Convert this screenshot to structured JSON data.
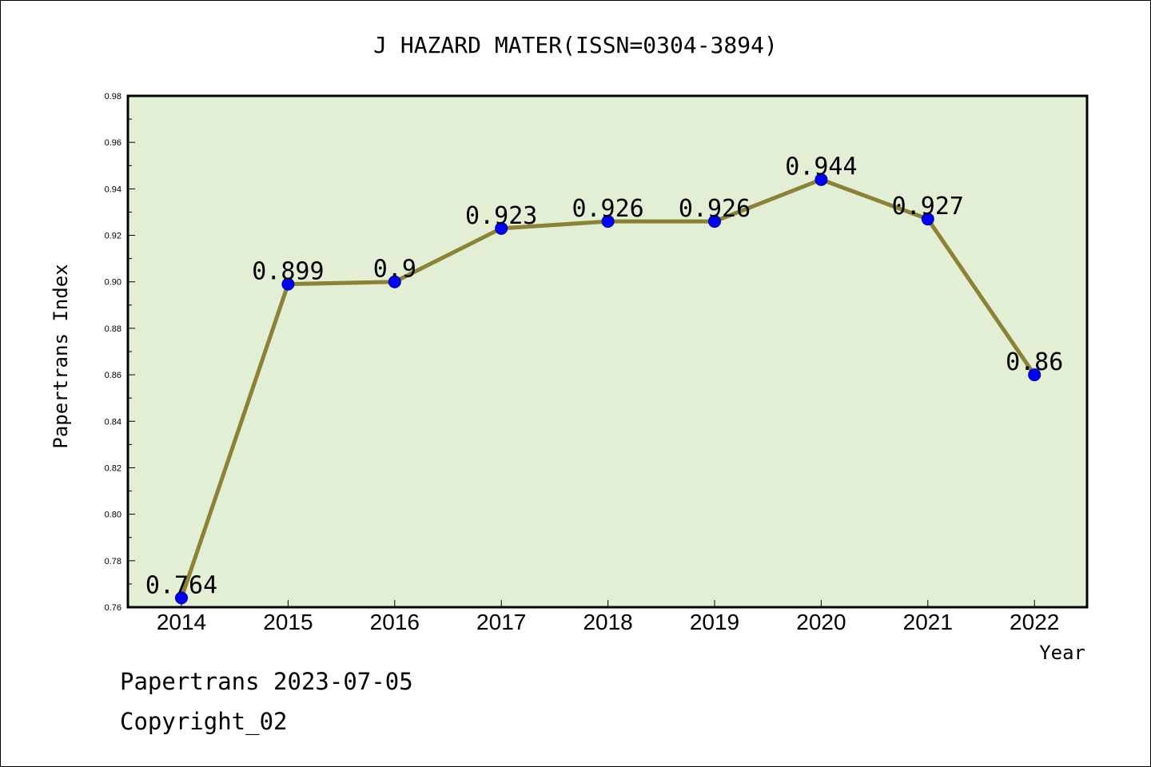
{
  "chart_data": {
    "type": "line",
    "title": "J HAZARD MATER(ISSN=0304-3894)",
    "xlabel": "Year",
    "ylabel": "Papertrans Index",
    "categories": [
      "2014",
      "2015",
      "2016",
      "2017",
      "2018",
      "2019",
      "2020",
      "2021",
      "2022"
    ],
    "series": [
      {
        "values": [
          0.764,
          0.899,
          0.9,
          0.923,
          0.926,
          0.926,
          0.944,
          0.927,
          0.86
        ],
        "labels": [
          "0.764",
          "0.899",
          "0.9",
          "0.923",
          "0.926",
          "0.926",
          "0.944",
          "0.927",
          "0.86"
        ]
      }
    ],
    "ylim": [
      0.76,
      0.98
    ],
    "yticks": [
      "0.76",
      "0.78",
      "0.80",
      "0.82",
      "0.84",
      "0.86",
      "0.88",
      "0.90",
      "0.92",
      "0.94",
      "0.96",
      "0.98"
    ],
    "grid": false,
    "legend": "none",
    "colors": {
      "plot_background": "#e2efd5",
      "line": "#8b8236",
      "marker": "#0000ff",
      "axis": "#000000"
    }
  },
  "footer": {
    "line1": "Papertrans 2023-07-05",
    "line2": "Copyright_02"
  }
}
